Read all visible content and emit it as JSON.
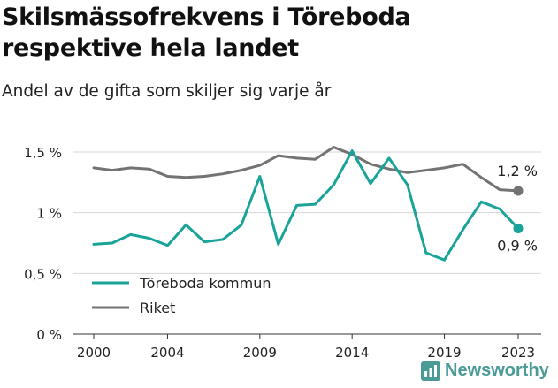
{
  "title_line1": "Skilsmässofrekvens i Töreboda",
  "title_line2": "respektive hela landet",
  "subtitle": "Andel av de gifta som skiljer sig varje år",
  "logo_text": "Newsworthy",
  "colors": {
    "teal": "#1aa399",
    "gray": "#737373",
    "grid": "#d6d6d6",
    "axis": "#333333"
  },
  "chart_data": {
    "type": "line",
    "x": [
      2000,
      2001,
      2002,
      2003,
      2004,
      2005,
      2006,
      2007,
      2008,
      2009,
      2010,
      2011,
      2012,
      2013,
      2014,
      2015,
      2016,
      2017,
      2018,
      2019,
      2020,
      2021,
      2022,
      2023
    ],
    "series": [
      {
        "name": "Töreboda kommun",
        "color": "#1aa399",
        "values": [
          0.74,
          0.75,
          0.82,
          0.79,
          0.73,
          0.9,
          0.76,
          0.78,
          0.9,
          1.3,
          0.74,
          1.06,
          1.07,
          1.23,
          1.51,
          1.24,
          1.45,
          1.23,
          0.67,
          0.61,
          0.86,
          1.09,
          1.03,
          0.87
        ]
      },
      {
        "name": "Riket",
        "color": "#737373",
        "values": [
          1.37,
          1.35,
          1.37,
          1.36,
          1.3,
          1.29,
          1.3,
          1.32,
          1.35,
          1.39,
          1.47,
          1.45,
          1.44,
          1.54,
          1.48,
          1.4,
          1.36,
          1.33,
          1.35,
          1.37,
          1.4,
          1.29,
          1.19,
          1.18
        ]
      }
    ],
    "end_labels": [
      "0,9 %",
      "1,2 %"
    ],
    "y_ticks": [
      0,
      0.5,
      1,
      1.5
    ],
    "y_tick_labels": [
      "0 %",
      "0,5 %",
      "1 %",
      "1,5 %"
    ],
    "x_ticks": [
      2000,
      2004,
      2009,
      2014,
      2019,
      2023
    ],
    "x_tick_labels": [
      "2000",
      "2004",
      "2009",
      "2014",
      "2019",
      "2023"
    ],
    "ylim": [
      0,
      1.5
    ],
    "xlim": [
      2000,
      2023
    ],
    "legend_position": "bottom-left",
    "grid": true
  }
}
